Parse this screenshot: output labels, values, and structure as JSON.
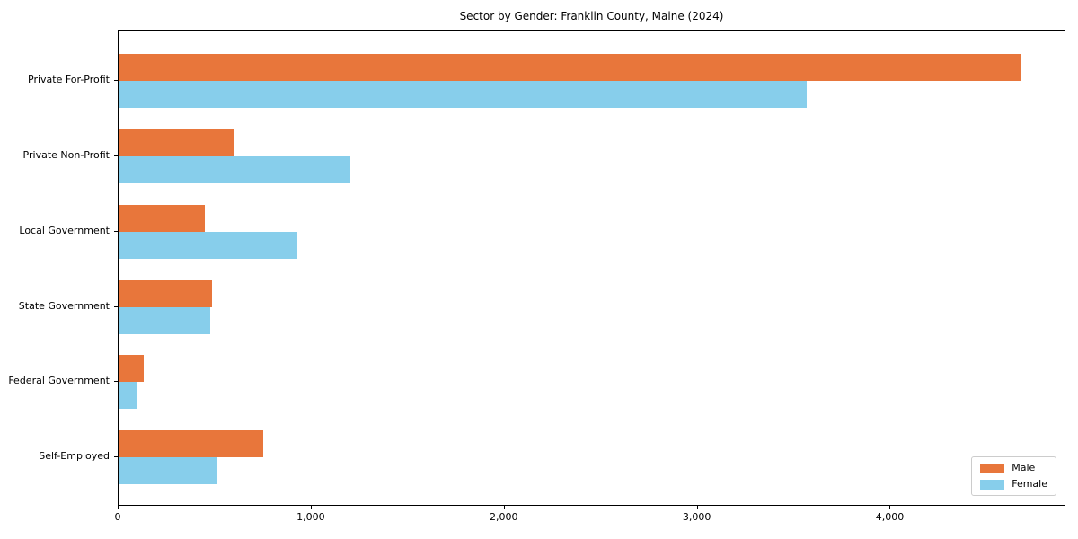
{
  "title": "Sector by Gender: Franklin County, Maine (2024)",
  "colors": {
    "male": "#E8763B",
    "female": "#87CEEB",
    "spine": "#000000",
    "legend_border": "#CCCCCC",
    "background": "#FFFFFF",
    "text": "#000000"
  },
  "chart_data": {
    "type": "bar",
    "orientation": "horizontal",
    "title": "Sector by Gender: Franklin County, Maine (2024)",
    "categories": [
      "Private For-Profit",
      "Private Non-Profit",
      "Local Government",
      "State Government",
      "Federal Government",
      "Self-Employed"
    ],
    "series": [
      {
        "name": "Male",
        "color": "#E8763B",
        "values": [
          4675,
          595,
          447,
          482,
          128,
          750
        ]
      },
      {
        "name": "Female",
        "color": "#87CEEB",
        "values": [
          3566,
          1200,
          928,
          477,
          95,
          513
        ]
      }
    ],
    "xlabel": "",
    "ylabel": "",
    "xlim": [
      0,
      4910
    ],
    "xticks": [
      0,
      1000,
      2000,
      3000,
      4000
    ],
    "xtick_labels": [
      "0",
      "1,000",
      "2,000",
      "3,000",
      "4,000"
    ],
    "legend": {
      "position": "lower right",
      "entries": [
        "Male",
        "Female"
      ]
    },
    "grid": false
  }
}
